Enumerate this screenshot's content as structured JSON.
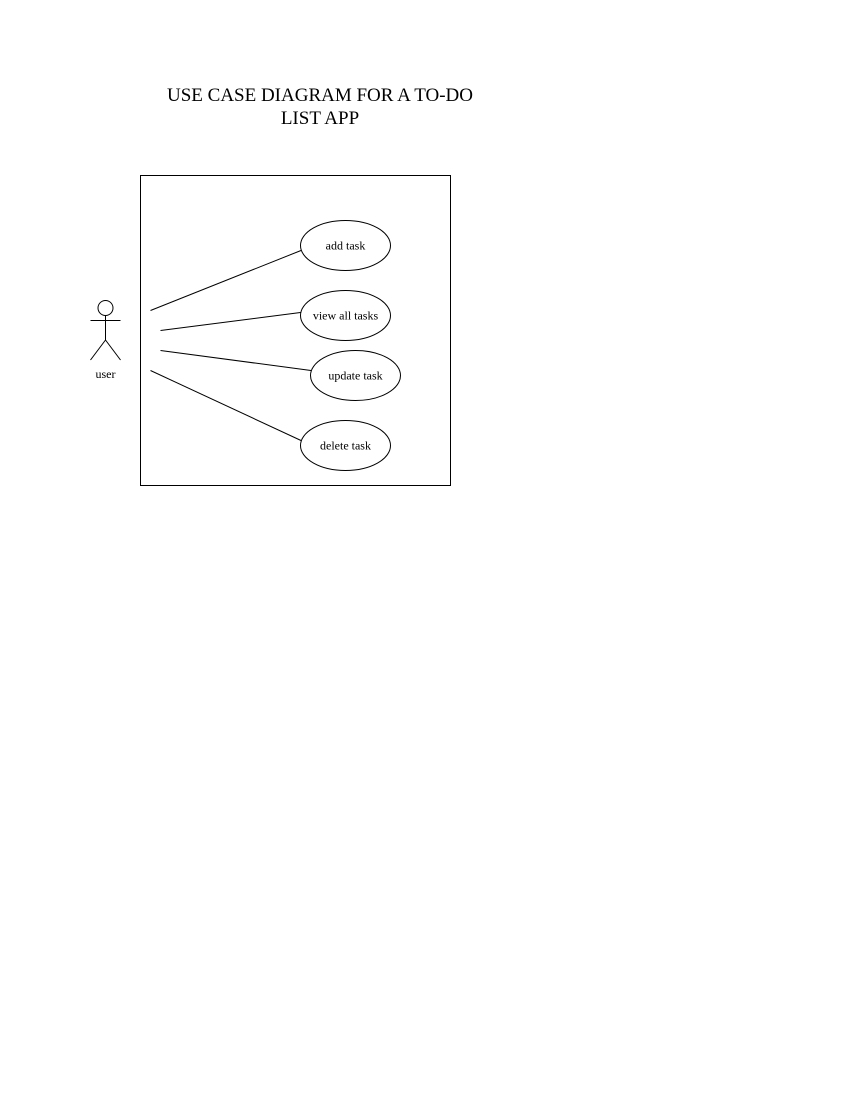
{
  "title": {
    "line1": "USE CASE DIAGRAM FOR A TO-DO",
    "line2": "LIST APP"
  },
  "actor": {
    "label": "user"
  },
  "use_cases": [
    {
      "label": "add task"
    },
    {
      "label": "view all tasks"
    },
    {
      "label": "update task"
    },
    {
      "label": "delete task"
    }
  ],
  "colors": {
    "stroke": "#000000",
    "background": "#ffffff"
  }
}
